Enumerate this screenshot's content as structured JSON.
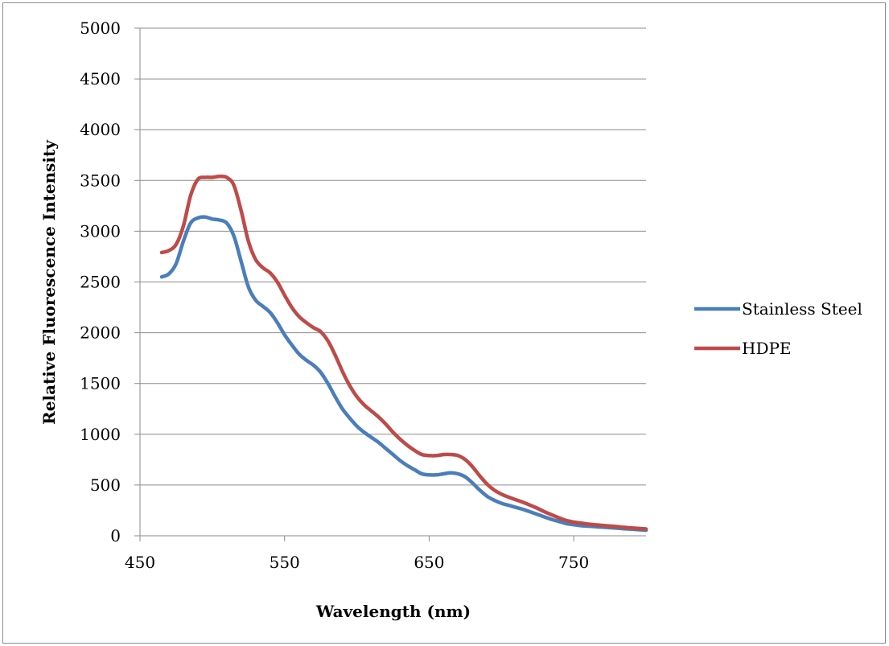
{
  "chart_data": {
    "type": "line",
    "title": "",
    "xlabel": "Wavelength (nm)",
    "ylabel": "Relative Fluorescence Intensity",
    "xlim": [
      450,
      800
    ],
    "ylim": [
      0,
      5000
    ],
    "x_ticks": [
      450,
      550,
      650,
      750
    ],
    "y_ticks": [
      0,
      500,
      1000,
      1500,
      2000,
      2500,
      3000,
      3500,
      4000,
      4500,
      5000
    ],
    "grid": "horizontal",
    "legend_position": "right",
    "series": [
      {
        "name": "Stainless Steel",
        "color": "#4a7ebb",
        "points": [
          [
            465,
            2550
          ],
          [
            470,
            2580
          ],
          [
            475,
            2680
          ],
          [
            480,
            2900
          ],
          [
            485,
            3080
          ],
          [
            490,
            3130
          ],
          [
            495,
            3140
          ],
          [
            500,
            3120
          ],
          [
            505,
            3110
          ],
          [
            510,
            3080
          ],
          [
            515,
            2950
          ],
          [
            520,
            2700
          ],
          [
            525,
            2450
          ],
          [
            530,
            2320
          ],
          [
            535,
            2260
          ],
          [
            540,
            2200
          ],
          [
            545,
            2100
          ],
          [
            550,
            1980
          ],
          [
            555,
            1880
          ],
          [
            560,
            1790
          ],
          [
            565,
            1730
          ],
          [
            570,
            1680
          ],
          [
            575,
            1610
          ],
          [
            580,
            1500
          ],
          [
            585,
            1370
          ],
          [
            590,
            1250
          ],
          [
            595,
            1160
          ],
          [
            600,
            1080
          ],
          [
            605,
            1020
          ],
          [
            610,
            970
          ],
          [
            615,
            920
          ],
          [
            620,
            860
          ],
          [
            625,
            800
          ],
          [
            630,
            740
          ],
          [
            635,
            690
          ],
          [
            640,
            650
          ],
          [
            645,
            610
          ],
          [
            650,
            600
          ],
          [
            655,
            600
          ],
          [
            660,
            610
          ],
          [
            665,
            620
          ],
          [
            670,
            610
          ],
          [
            675,
            580
          ],
          [
            680,
            520
          ],
          [
            685,
            450
          ],
          [
            690,
            390
          ],
          [
            695,
            350
          ],
          [
            700,
            320
          ],
          [
            705,
            300
          ],
          [
            710,
            280
          ],
          [
            715,
            260
          ],
          [
            720,
            235
          ],
          [
            725,
            210
          ],
          [
            730,
            185
          ],
          [
            735,
            160
          ],
          [
            740,
            140
          ],
          [
            745,
            120
          ],
          [
            750,
            110
          ],
          [
            755,
            100
          ],
          [
            760,
            95
          ],
          [
            765,
            90
          ],
          [
            770,
            85
          ],
          [
            775,
            80
          ],
          [
            780,
            75
          ],
          [
            785,
            70
          ],
          [
            790,
            65
          ],
          [
            795,
            60
          ],
          [
            800,
            55
          ]
        ]
      },
      {
        "name": "HDPE",
        "color": "#be4b48",
        "points": [
          [
            465,
            2790
          ],
          [
            470,
            2810
          ],
          [
            475,
            2870
          ],
          [
            480,
            3050
          ],
          [
            485,
            3350
          ],
          [
            490,
            3510
          ],
          [
            495,
            3530
          ],
          [
            500,
            3530
          ],
          [
            505,
            3540
          ],
          [
            510,
            3530
          ],
          [
            515,
            3450
          ],
          [
            520,
            3200
          ],
          [
            525,
            2900
          ],
          [
            530,
            2720
          ],
          [
            535,
            2640
          ],
          [
            540,
            2590
          ],
          [
            545,
            2500
          ],
          [
            550,
            2370
          ],
          [
            555,
            2250
          ],
          [
            560,
            2160
          ],
          [
            565,
            2100
          ],
          [
            570,
            2050
          ],
          [
            575,
            2010
          ],
          [
            580,
            1920
          ],
          [
            585,
            1780
          ],
          [
            590,
            1620
          ],
          [
            595,
            1480
          ],
          [
            600,
            1370
          ],
          [
            605,
            1290
          ],
          [
            610,
            1230
          ],
          [
            615,
            1170
          ],
          [
            620,
            1100
          ],
          [
            625,
            1020
          ],
          [
            630,
            950
          ],
          [
            635,
            890
          ],
          [
            640,
            840
          ],
          [
            645,
            800
          ],
          [
            650,
            790
          ],
          [
            655,
            790
          ],
          [
            660,
            800
          ],
          [
            665,
            800
          ],
          [
            670,
            790
          ],
          [
            675,
            750
          ],
          [
            680,
            680
          ],
          [
            685,
            590
          ],
          [
            690,
            510
          ],
          [
            695,
            450
          ],
          [
            700,
            410
          ],
          [
            705,
            380
          ],
          [
            710,
            355
          ],
          [
            715,
            330
          ],
          [
            720,
            300
          ],
          [
            725,
            270
          ],
          [
            730,
            235
          ],
          [
            735,
            205
          ],
          [
            740,
            175
          ],
          [
            745,
            150
          ],
          [
            750,
            135
          ],
          [
            755,
            125
          ],
          [
            760,
            115
          ],
          [
            765,
            108
          ],
          [
            770,
            102
          ],
          [
            775,
            96
          ],
          [
            780,
            90
          ],
          [
            785,
            83
          ],
          [
            790,
            77
          ],
          [
            795,
            72
          ],
          [
            800,
            67
          ]
        ]
      }
    ]
  }
}
